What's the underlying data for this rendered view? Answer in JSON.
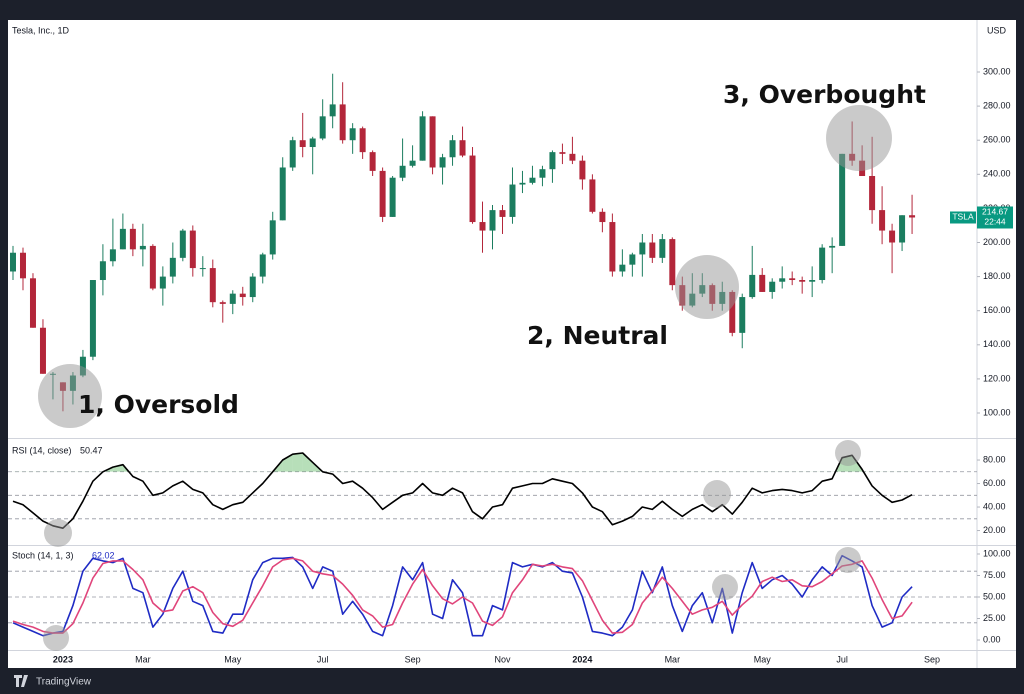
{
  "chart_data": [
    {
      "type": "candlestick",
      "title": "Tesla, Inc., 1D",
      "currency": "USD",
      "symbol": "TSLA",
      "countdown": "22:44",
      "up_color": "#1b7d5f",
      "down_color": "#b3263a",
      "label_color": "#089981",
      "ylim": [
        85.34,
        330.5
      ],
      "yticks": [
        {
          "value": 100,
          "label": "100.00"
        },
        {
          "value": 120,
          "label": "120.00"
        },
        {
          "value": 140,
          "label": "140.00"
        },
        {
          "value": 160,
          "label": "160.00"
        },
        {
          "value": 180,
          "label": "180.00"
        },
        {
          "value": 200,
          "label": "200.00"
        },
        {
          "value": 220,
          "label": "220.00"
        },
        {
          "value": 240,
          "label": "240.00"
        },
        {
          "value": 260,
          "label": "260.00"
        },
        {
          "value": 280,
          "label": "280.00"
        },
        {
          "value": 300,
          "label": "300.00"
        }
      ],
      "annotations": [
        "1, Oversold",
        "2, Neutral",
        "3, Overbought"
      ],
      "open": [
        183,
        194,
        179,
        150,
        123,
        118,
        113,
        122,
        133,
        178,
        189,
        196,
        208,
        196,
        198,
        173,
        180,
        191,
        207,
        185,
        185,
        165,
        164,
        170,
        168,
        180,
        193,
        213,
        244,
        260,
        256,
        261,
        274,
        281,
        260,
        267,
        253,
        242,
        215,
        238,
        245,
        248,
        274,
        244,
        250,
        260,
        251,
        212,
        207,
        219,
        215,
        234,
        235,
        238,
        243,
        253,
        252,
        248,
        237,
        218,
        212,
        183,
        187,
        193,
        200,
        191,
        202,
        175,
        163,
        170,
        175,
        164,
        171,
        147,
        168,
        181,
        171,
        177,
        179,
        178,
        177,
        178,
        197,
        198,
        252,
        248,
        239,
        219,
        207,
        200,
        216,
        null,
        null,
        null,
        null,
        null,
        null
      ],
      "high": [
        198,
        197,
        182,
        155,
        124,
        118,
        124,
        137,
        178,
        199,
        214,
        217,
        211,
        211,
        199,
        186,
        200,
        208,
        210,
        192,
        190,
        166,
        172,
        174,
        182,
        194,
        218,
        250,
        262,
        276,
        262,
        284,
        299,
        294,
        270,
        268,
        254,
        244,
        239,
        261,
        257,
        277,
        274,
        252,
        263,
        268,
        256,
        224,
        222,
        222,
        244,
        242,
        245,
        245,
        254,
        258,
        262,
        251,
        240,
        220,
        217,
        196,
        194,
        205,
        205,
        205,
        203,
        180,
        182,
        182,
        176,
        177,
        172,
        170,
        198,
        185,
        179,
        186,
        183,
        180,
        186,
        199,
        203,
        252,
        271,
        257,
        262,
        233,
        211,
        216,
        228,
        null,
        null,
        null,
        null,
        null,
        null
      ],
      "low": [
        178,
        172,
        150,
        123,
        108,
        101,
        105,
        121,
        131,
        169,
        186,
        196,
        192,
        186,
        172,
        163,
        176,
        189,
        180,
        180,
        162,
        153,
        158,
        163,
        165,
        176,
        190,
        213,
        242,
        250,
        240,
        260,
        267,
        258,
        252,
        249,
        239,
        212,
        215,
        236,
        244,
        248,
        240,
        234,
        245,
        250,
        211,
        194,
        196,
        205,
        211,
        229,
        234,
        233,
        235,
        246,
        246,
        231,
        217,
        206,
        180,
        180,
        180,
        180,
        188,
        188,
        172,
        160,
        162,
        168,
        160,
        160,
        145,
        138,
        167,
        171,
        167,
        173,
        175,
        170,
        168,
        176,
        182,
        198,
        245,
        239,
        211,
        199,
        182,
        195,
        205,
        null,
        null,
        null,
        null,
        null,
        null
      ],
      "close": [
        194,
        179,
        150,
        123,
        123,
        113,
        122,
        133,
        178,
        189,
        196,
        208,
        196,
        198,
        173,
        180,
        191,
        207,
        185,
        185,
        165,
        164,
        170,
        168,
        180,
        193,
        213,
        244,
        260,
        256,
        261,
        274,
        281,
        260,
        267,
        253,
        242,
        215,
        238,
        245,
        248,
        274,
        244,
        250,
        260,
        251,
        212,
        207,
        219,
        215,
        234,
        235,
        238,
        243,
        253,
        252,
        248,
        237,
        218,
        212,
        183,
        187,
        193,
        200,
        191,
        202,
        175,
        163,
        170,
        175,
        164,
        171,
        147,
        168,
        181,
        171,
        177,
        179,
        178,
        177,
        178,
        197,
        198,
        252,
        248,
        239,
        219,
        207,
        200,
        216,
        214.67,
        null,
        null,
        null,
        null,
        null,
        null
      ]
    },
    {
      "type": "line",
      "title": "RSI (14, close)",
      "ylim": [
        7.7,
        97.9
      ],
      "yticks": [
        {
          "value": 20,
          "label": "20.00"
        },
        {
          "value": 40,
          "label": "40.00"
        },
        {
          "value": 60,
          "label": "60.00"
        },
        {
          "value": 80,
          "label": "80.00"
        }
      ],
      "hlines": [
        70,
        50,
        30
      ],
      "overbought_fill": "rgba(76,175,80,0.4)",
      "series": [
        {
          "color": "#000000",
          "values": [
            45,
            42,
            35,
            28,
            24,
            22,
            30,
            45,
            62,
            70,
            74,
            76,
            66,
            62,
            50,
            52,
            58,
            62,
            55,
            52,
            42,
            38,
            42,
            44,
            52,
            60,
            70,
            80,
            85,
            86,
            78,
            70,
            68,
            60,
            62,
            56,
            48,
            38,
            44,
            50,
            52,
            60,
            52,
            50,
            56,
            52,
            36,
            30,
            40,
            42,
            56,
            58,
            60,
            60,
            64,
            62,
            60,
            52,
            40,
            36,
            25,
            28,
            32,
            40,
            38,
            45,
            38,
            32,
            38,
            42,
            36,
            42,
            34,
            44,
            56,
            52,
            54,
            55,
            54,
            52,
            54,
            62,
            64,
            82,
            84,
            72,
            58,
            50,
            44,
            46,
            50.47,
            null,
            null,
            null,
            null,
            null,
            null
          ]
        }
      ]
    },
    {
      "type": "line",
      "title": "Stoch (14, 1, 3)",
      "ylim": [
        -11.6,
        109.3
      ],
      "yticks": [
        {
          "value": 0,
          "label": "0.00"
        },
        {
          "value": 25,
          "label": "25.00"
        },
        {
          "value": 50,
          "label": "50.00"
        },
        {
          "value": 75,
          "label": "75.00"
        },
        {
          "value": 100,
          "label": "100.00"
        }
      ],
      "hlines": [
        80,
        50,
        20
      ],
      "categories": [
        null,
        null,
        null,
        null,
        null,
        "2023",
        null,
        null,
        null,
        null,
        null,
        null,
        null,
        "Mar",
        null,
        null,
        null,
        null,
        null,
        null,
        null,
        null,
        "May",
        null,
        null,
        null,
        null,
        null,
        null,
        null,
        null,
        "Jul",
        null,
        null,
        null,
        null,
        null,
        null,
        null,
        null,
        "Sep",
        null,
        null,
        null,
        null,
        null,
        null,
        null,
        null,
        "Nov",
        null,
        null,
        null,
        null,
        null,
        null,
        null,
        "2024",
        null,
        null,
        null,
        null,
        null,
        null,
        null,
        null,
        "Mar",
        null,
        null,
        null,
        null,
        null,
        null,
        null,
        null,
        "May",
        null,
        null,
        null,
        null,
        null,
        null,
        null,
        "Jul",
        null,
        null,
        null,
        null,
        null,
        null,
        null,
        null,
        "Sep",
        null,
        null,
        null,
        null
      ],
      "series": [
        {
          "color": "#1f2bc4",
          "values": [
            20,
            15,
            10,
            5,
            8,
            10,
            40,
            80,
            95,
            92,
            90,
            95,
            60,
            55,
            15,
            30,
            60,
            80,
            45,
            40,
            10,
            8,
            30,
            30,
            70,
            90,
            95,
            95,
            96,
            85,
            60,
            85,
            80,
            30,
            45,
            30,
            10,
            5,
            40,
            85,
            70,
            90,
            30,
            25,
            70,
            55,
            5,
            5,
            40,
            35,
            90,
            85,
            88,
            85,
            90,
            80,
            78,
            50,
            10,
            8,
            5,
            15,
            35,
            80,
            55,
            85,
            40,
            10,
            40,
            55,
            20,
            60,
            8,
            55,
            90,
            60,
            70,
            75,
            65,
            50,
            70,
            85,
            75,
            98,
            92,
            85,
            40,
            15,
            20,
            50,
            62.02,
            null,
            null,
            null,
            null,
            null,
            null
          ]
        },
        {
          "color": "#e0457b",
          "values": [
            22,
            18,
            15,
            10,
            8,
            8,
            19,
            43,
            72,
            89,
            92,
            92,
            82,
            70,
            43,
            33,
            35,
            57,
            62,
            55,
            32,
            19,
            16,
            23,
            43,
            63,
            85,
            93,
            95,
            92,
            80,
            77,
            75,
            65,
            52,
            35,
            28,
            15,
            18,
            43,
            65,
            82,
            63,
            48,
            42,
            50,
            43,
            22,
            17,
            27,
            55,
            70,
            88,
            86,
            88,
            85,
            83,
            69,
            46,
            23,
            8,
            9,
            18,
            43,
            57,
            73,
            60,
            45,
            30,
            35,
            38,
            45,
            29,
            41,
            51,
            68,
            73,
            68,
            70,
            63,
            62,
            68,
            77,
            86,
            88,
            92,
            72,
            47,
            25,
            28,
            44,
            null,
            null,
            null,
            null,
            null,
            null
          ]
        }
      ]
    }
  ],
  "footer": {
    "brand": "TradingView"
  }
}
